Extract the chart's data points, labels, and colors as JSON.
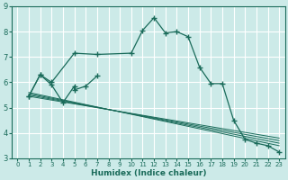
{
  "xlabel": "Humidex (Indice chaleur)",
  "bg_color": "#cceae8",
  "line_color": "#1a6b5a",
  "grid_color": "#ffffff",
  "xlim": [
    -0.5,
    23.5
  ],
  "ylim": [
    3,
    9
  ],
  "xticks": [
    0,
    1,
    2,
    3,
    4,
    5,
    6,
    7,
    8,
    9,
    10,
    11,
    12,
    13,
    14,
    15,
    16,
    17,
    18,
    19,
    20,
    21,
    22,
    23
  ],
  "yticks": [
    3,
    4,
    5,
    6,
    7,
    8,
    9
  ],
  "main_curve_x": [
    1,
    2,
    3,
    5,
    7,
    10,
    11,
    12,
    13,
    14,
    15,
    16,
    17,
    18,
    19,
    20,
    21,
    22,
    23
  ],
  "main_curve_y": [
    5.45,
    6.3,
    6.0,
    7.15,
    7.1,
    7.15,
    8.05,
    8.55,
    7.95,
    8.0,
    7.8,
    6.6,
    5.95,
    5.95,
    4.5,
    3.75,
    3.6,
    3.5,
    3.25
  ],
  "zigzag_x": [
    1,
    2,
    3,
    4,
    5,
    5,
    6,
    7
  ],
  "zigzag_y": [
    5.45,
    6.3,
    5.9,
    5.2,
    5.85,
    5.7,
    5.85,
    6.25
  ],
  "reg_lines": [
    {
      "x": [
        1,
        23
      ],
      "y": [
        5.6,
        3.5
      ]
    },
    {
      "x": [
        1,
        23
      ],
      "y": [
        5.55,
        3.6
      ]
    },
    {
      "x": [
        1,
        23
      ],
      "y": [
        5.5,
        3.7
      ]
    },
    {
      "x": [
        1,
        23
      ],
      "y": [
        5.45,
        3.8
      ]
    }
  ]
}
